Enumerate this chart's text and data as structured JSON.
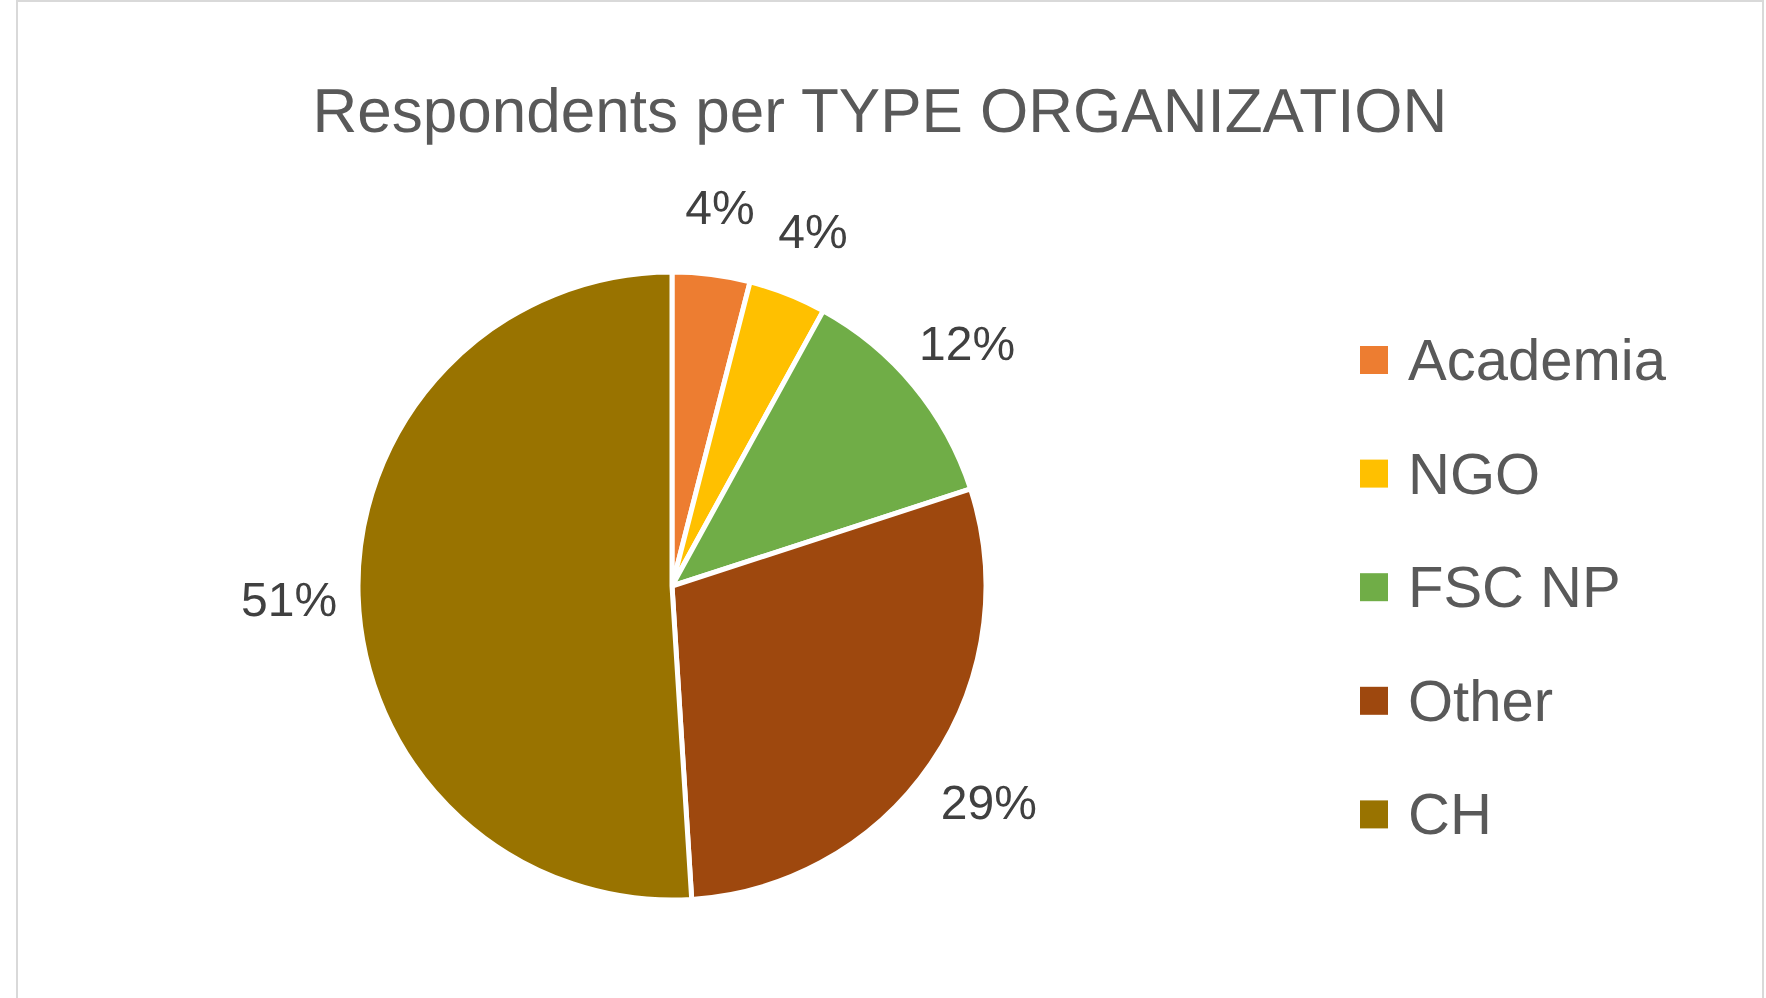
{
  "chart_data": {
    "type": "pie",
    "title": "Respondents per TYPE ORGANIZATION",
    "categories": [
      "Academia",
      "NGO",
      "FSC NP",
      "Other",
      "CH"
    ],
    "values": [
      4,
      4,
      12,
      29,
      51
    ],
    "colors": [
      "#ed7d31",
      "#ffc000",
      "#70ad47",
      "#9e480e",
      "#997300"
    ],
    "value_labels": [
      "4%",
      "4%",
      "12%",
      "29%",
      "51%"
    ],
    "legend": "right"
  }
}
